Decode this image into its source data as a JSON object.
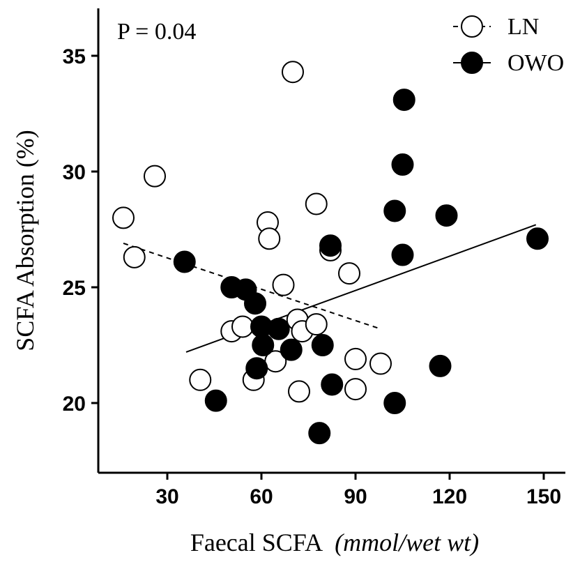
{
  "chart_data": {
    "type": "scatter",
    "title": "",
    "annotation": "P = 0.04",
    "xlabel": "Faecal SCFA",
    "xlabel_units": "(mmol/wet wt)",
    "ylabel": "SCFA Absorption (%)",
    "xlim": [
      10,
      160
    ],
    "ylim": [
      17,
      37
    ],
    "x_ticks": [
      30,
      60,
      90,
      120,
      150
    ],
    "y_ticks": [
      20,
      25,
      30,
      35
    ],
    "grid": false,
    "legend_placement": "top-right",
    "series": [
      {
        "name": "LN",
        "marker": "open-circle",
        "trend_style": "dashed",
        "trend_line": {
          "x": [
            16,
            98
          ],
          "y": [
            26.9,
            23.2
          ]
        },
        "points": [
          [
            16,
            28.0
          ],
          [
            19.5,
            26.3
          ],
          [
            26,
            29.8
          ],
          [
            40.5,
            21.0
          ],
          [
            50.5,
            23.1
          ],
          [
            54,
            23.3
          ],
          [
            57.5,
            21.0
          ],
          [
            62,
            27.8
          ],
          [
            62.5,
            27.1
          ],
          [
            64.5,
            21.8
          ],
          [
            67,
            25.1
          ],
          [
            71.5,
            23.6
          ],
          [
            72,
            20.5
          ],
          [
            73,
            23.1
          ],
          [
            70,
            34.3
          ],
          [
            77.5,
            23.4
          ],
          [
            77.5,
            28.6
          ],
          [
            82,
            26.6
          ],
          [
            88,
            25.6
          ],
          [
            90,
            21.9
          ],
          [
            90,
            20.6
          ],
          [
            98,
            21.7
          ]
        ]
      },
      {
        "name": "OWO",
        "marker": "filled-circle",
        "trend_style": "solid",
        "trend_line": {
          "x": [
            36,
            147.5
          ],
          "y": [
            22.2,
            27.7
          ]
        },
        "points": [
          [
            35.5,
            26.1
          ],
          [
            45.5,
            20.1
          ],
          [
            50.5,
            25.0
          ],
          [
            55,
            24.9
          ],
          [
            58,
            24.3
          ],
          [
            58.5,
            21.5
          ],
          [
            60,
            23.3
          ],
          [
            60.5,
            22.5
          ],
          [
            65.5,
            23.2
          ],
          [
            69.5,
            22.3
          ],
          [
            78.5,
            18.7
          ],
          [
            79.5,
            22.5
          ],
          [
            82,
            26.8
          ],
          [
            82.5,
            20.8
          ],
          [
            102.5,
            28.3
          ],
          [
            102.5,
            20.0
          ],
          [
            105,
            30.3
          ],
          [
            105,
            26.4
          ],
          [
            105.5,
            33.1
          ],
          [
            117,
            21.6
          ],
          [
            119,
            28.1
          ],
          [
            148,
            27.1
          ]
        ]
      }
    ]
  }
}
